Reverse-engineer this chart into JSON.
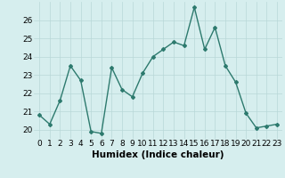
{
  "x": [
    0,
    1,
    2,
    3,
    4,
    5,
    6,
    7,
    8,
    9,
    10,
    11,
    12,
    13,
    14,
    15,
    16,
    17,
    18,
    19,
    20,
    21,
    22,
    23
  ],
  "y": [
    20.8,
    20.3,
    21.6,
    23.5,
    22.7,
    19.9,
    19.8,
    23.4,
    22.2,
    21.8,
    23.1,
    24.0,
    24.4,
    24.8,
    24.6,
    26.7,
    24.4,
    25.6,
    23.5,
    22.6,
    20.9,
    20.1,
    20.2,
    20.3
  ],
  "xlabel": "Humidex (Indice chaleur)",
  "xlim": [
    -0.5,
    23.5
  ],
  "ylim": [
    19.5,
    27.0
  ],
  "yticks": [
    20,
    21,
    22,
    23,
    24,
    25,
    26
  ],
  "xticks": [
    0,
    1,
    2,
    3,
    4,
    5,
    6,
    7,
    8,
    9,
    10,
    11,
    12,
    13,
    14,
    15,
    16,
    17,
    18,
    19,
    20,
    21,
    22,
    23
  ],
  "line_color": "#2d7a6e",
  "marker": "D",
  "marker_size": 2.0,
  "line_width": 1.0,
  "bg_color": "#d6eeee",
  "grid_color": "#b8d8d8",
  "xlabel_fontsize": 7.5,
  "tick_fontsize": 6.5
}
